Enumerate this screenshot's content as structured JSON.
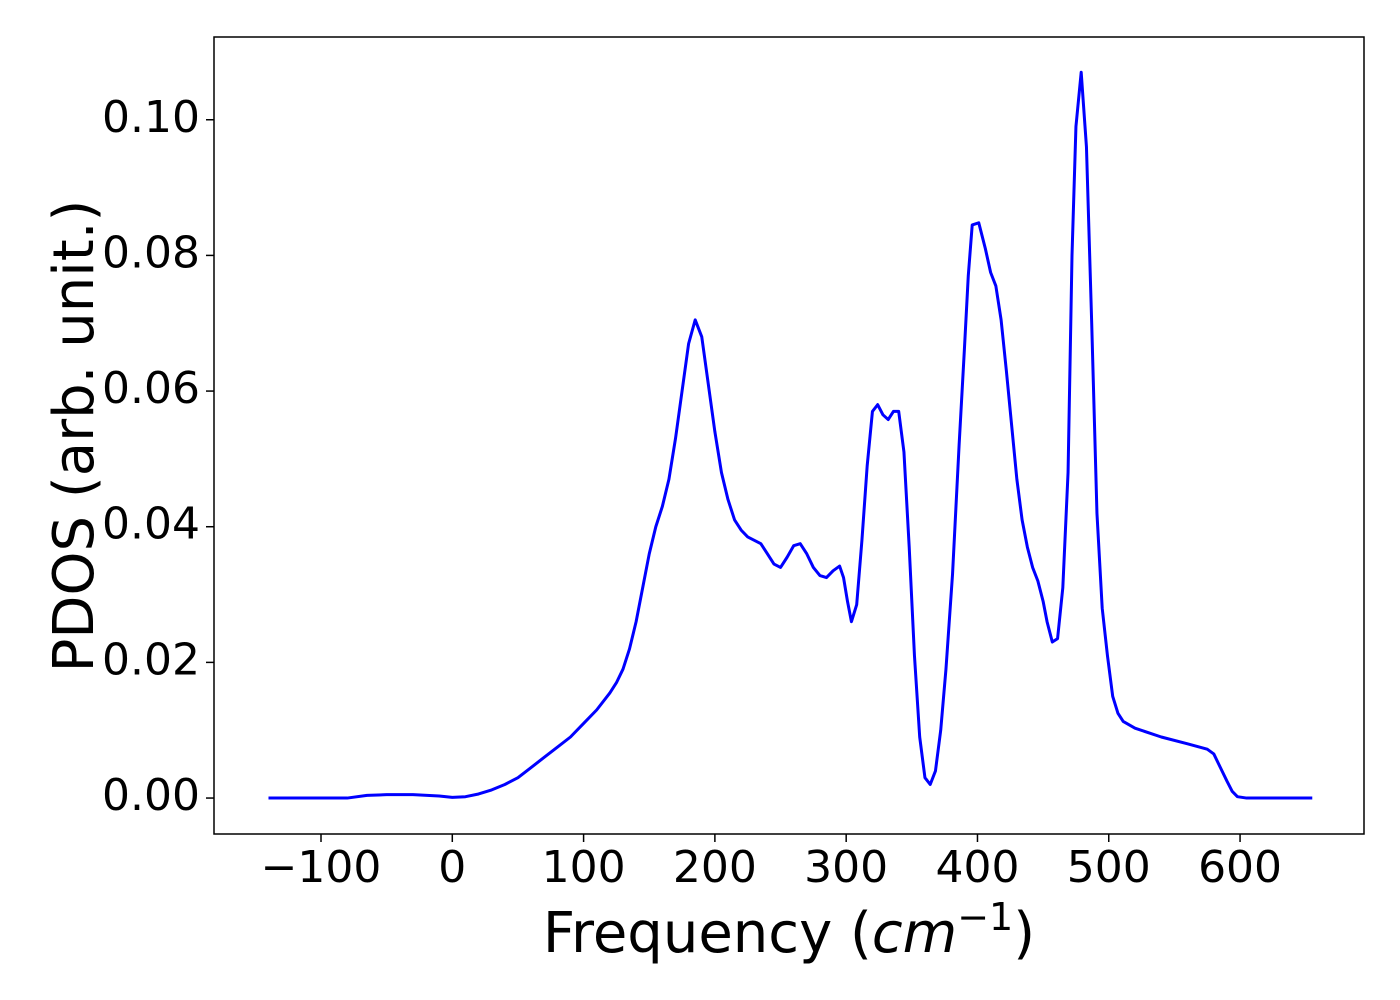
{
  "chart_data": {
    "type": "line",
    "x_label": {
      "prefix": "Frequency (",
      "math": "cm",
      "exponent": "−1",
      "suffix": ")"
    },
    "y_label": "PDOS (arb. unit.)",
    "xlim": [
      -181.5,
      694.4
    ],
    "ylim": [
      -0.0053,
      0.1122
    ],
    "xticks": [
      {
        "value": -100,
        "label": "−100"
      },
      0,
      100,
      200,
      300,
      400,
      500,
      600
    ],
    "yticks": [
      {
        "value": 0,
        "label": "0.00"
      },
      {
        "value": 0.02,
        "label": "0.02"
      },
      {
        "value": 0.04,
        "label": "0.04"
      },
      {
        "value": 0.06,
        "label": "0.06"
      },
      {
        "value": 0.08,
        "label": "0.08"
      },
      {
        "value": 0.1,
        "label": "0.10"
      }
    ],
    "x": [
      -140,
      -80,
      -65,
      -50,
      -30,
      -10,
      0,
      10,
      20,
      30,
      40,
      50,
      60,
      70,
      80,
      90,
      100,
      110,
      120,
      125,
      130,
      135,
      140,
      145,
      150,
      155,
      160,
      165,
      170,
      175,
      180,
      185,
      190,
      195,
      200,
      205,
      210,
      215,
      220,
      225,
      230,
      235,
      240,
      245,
      250,
      255,
      260,
      265,
      270,
      275,
      280,
      285,
      290,
      295,
      298,
      301,
      304,
      308,
      312,
      316,
      320,
      324,
      328,
      332,
      336,
      340,
      344,
      348,
      352,
      356,
      360,
      364,
      368,
      372,
      376,
      381,
      386,
      390,
      393,
      396,
      401,
      406,
      410,
      414,
      418,
      422,
      426,
      430,
      434,
      438,
      442,
      446,
      450,
      453,
      457,
      461,
      465,
      469,
      472,
      475,
      479,
      483,
      487,
      491,
      495,
      499,
      503,
      507,
      511,
      520,
      540,
      560,
      575,
      580,
      585,
      590,
      594,
      598,
      605,
      655
    ],
    "series": [
      {
        "name": "PDOS",
        "color": "#0000ff",
        "values": [
          0,
          0,
          0.0004,
          0.0005,
          0.0005,
          0.0003,
          0.0001,
          0.0002,
          0.0006,
          0.0012,
          0.002,
          0.003,
          0.0045,
          0.006,
          0.0075,
          0.009,
          0.011,
          0.013,
          0.0155,
          0.017,
          0.019,
          0.022,
          0.026,
          0.031,
          0.036,
          0.04,
          0.043,
          0.047,
          0.053,
          0.06,
          0.067,
          0.0705,
          0.068,
          0.061,
          0.054,
          0.048,
          0.044,
          0.041,
          0.0395,
          0.0385,
          0.038,
          0.0375,
          0.036,
          0.0345,
          0.034,
          0.0355,
          0.0372,
          0.0375,
          0.036,
          0.034,
          0.0328,
          0.0325,
          0.0335,
          0.0342,
          0.0325,
          0.029,
          0.026,
          0.0285,
          0.038,
          0.049,
          0.057,
          0.058,
          0.0565,
          0.0558,
          0.057,
          0.057,
          0.051,
          0.037,
          0.021,
          0.009,
          0.003,
          0.002,
          0.004,
          0.01,
          0.019,
          0.033,
          0.052,
          0.066,
          0.077,
          0.0845,
          0.0848,
          0.081,
          0.0775,
          0.0755,
          0.0705,
          0.063,
          0.055,
          0.047,
          0.041,
          0.037,
          0.034,
          0.032,
          0.029,
          0.026,
          0.023,
          0.0235,
          0.031,
          0.048,
          0.08,
          0.099,
          0.107,
          0.096,
          0.07,
          0.042,
          0.028,
          0.021,
          0.015,
          0.0125,
          0.0113,
          0.0103,
          0.009,
          0.008,
          0.0072,
          0.0065,
          0.0045,
          0.0025,
          0.001,
          0.0002,
          0,
          0
        ]
      }
    ]
  }
}
